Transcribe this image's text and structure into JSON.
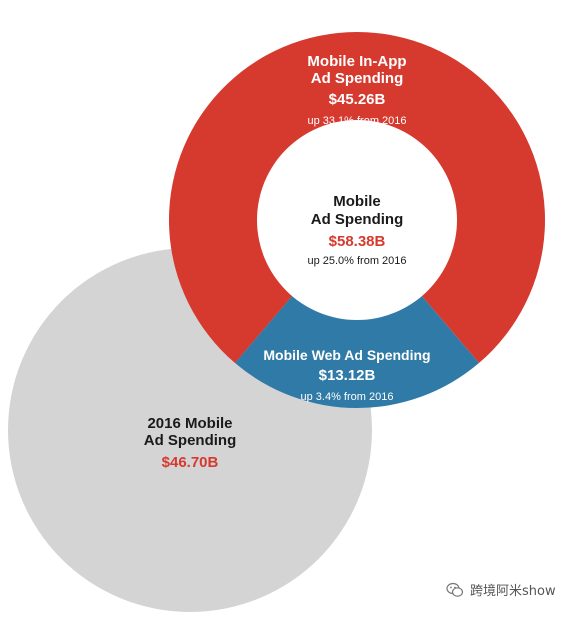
{
  "chart_data": {
    "type": "pie",
    "title": "",
    "center": {
      "line1": "Mobile",
      "line2": "Ad Spending",
      "value_label": "$58.38B",
      "value": 58.38,
      "change": "up 25.0% from 2016"
    },
    "slices": [
      {
        "name_lines": [
          "Mobile In-App",
          "Ad Spending"
        ],
        "value_label": "$45.26B",
        "value": 45.26,
        "change": "up 33.1% from 2016",
        "color": "#d63a2f"
      },
      {
        "name_lines": [
          "Mobile Web Ad Spending"
        ],
        "value_label": "$13.12B",
        "value": 13.12,
        "change": "up 3.4% from 2016",
        "color": "#2f7aa6"
      }
    ],
    "comparison": {
      "name_lines": [
        "2016 Mobile",
        "Ad Spending"
      ],
      "value_label": "$46.70B",
      "value": 46.7,
      "color": "#d4d4d4"
    },
    "colors": {
      "value_text": "#d63a2f",
      "label_text": "#1a1a1a",
      "label_text_on_color": "#ffffff",
      "center_fill": "#ffffff"
    }
  },
  "watermark": {
    "text": "跨境阿米show",
    "icon": "wechat-icon"
  }
}
